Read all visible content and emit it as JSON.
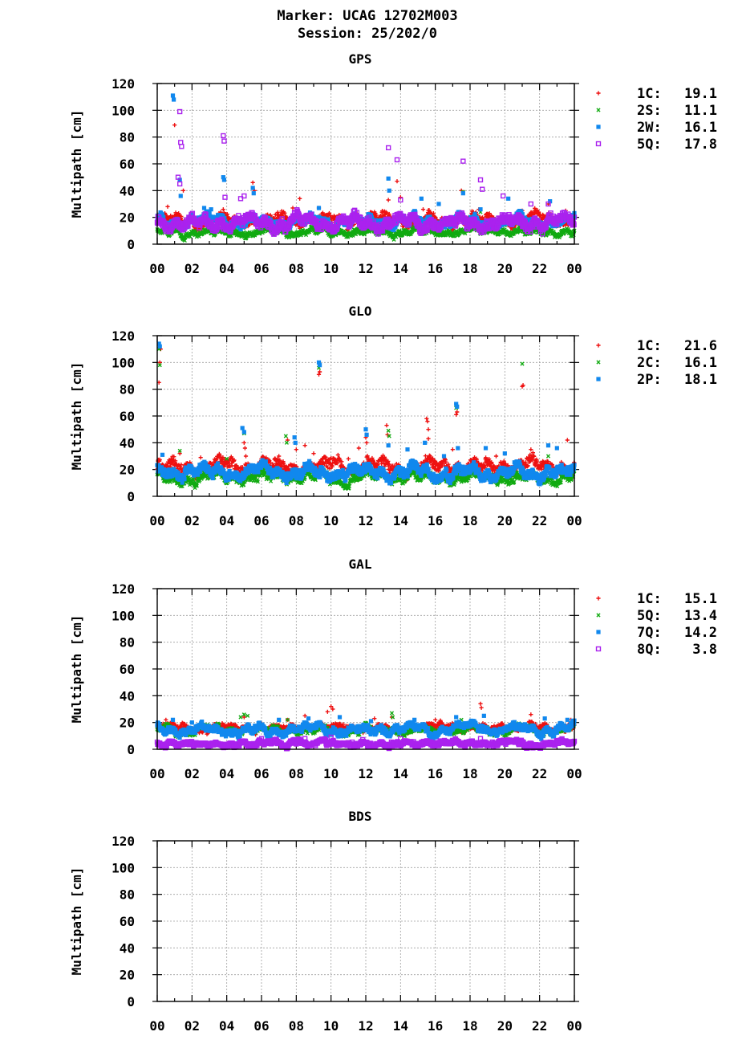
{
  "header": {
    "marker": "Marker: UCAG 12702M003",
    "session": "Session: 25/202/0"
  },
  "chart_data": [
    {
      "type": "scatter",
      "title": "GPS",
      "ylabel": "Multipath [cm]",
      "xlabel": "",
      "ylim": [
        0,
        120
      ],
      "yticks": [
        "0",
        "20",
        "40",
        "60",
        "80",
        "100",
        "120"
      ],
      "xticks": [
        "00",
        "02",
        "04",
        "06",
        "08",
        "10",
        "12",
        "14",
        "16",
        "18",
        "20",
        "22",
        "00"
      ],
      "xlim_hours": [
        0,
        24
      ],
      "grid": true,
      "legend_position": "right",
      "series": [
        {
          "name": "1C",
          "stat": "19.1",
          "color": "#ee1111",
          "marker": "plus",
          "base": 18,
          "amp": 5,
          "spikes": [
            [
              0.6,
              28
            ],
            [
              1.0,
              89
            ],
            [
              1.5,
              40
            ],
            [
              3.8,
              26
            ],
            [
              5.5,
              46
            ],
            [
              5.6,
              40
            ],
            [
              6.8,
              22
            ],
            [
              7.8,
              27
            ],
            [
              8.2,
              34
            ],
            [
              9.3,
              27
            ],
            [
              11.5,
              23
            ],
            [
              12.5,
              24
            ],
            [
              13.3,
              33
            ],
            [
              13.8,
              47
            ],
            [
              14.0,
              35
            ],
            [
              15.3,
              26
            ],
            [
              17.5,
              40
            ],
            [
              18.5,
              26
            ],
            [
              21.0,
              25
            ],
            [
              22.5,
              30
            ],
            [
              23.5,
              25
            ]
          ]
        },
        {
          "name": "2S",
          "stat": "11.1",
          "color": "#11aa11",
          "marker": "cross",
          "base": 9,
          "amp": 3,
          "spikes": [
            [
              1.3,
              16
            ],
            [
              4.0,
              14
            ],
            [
              5.6,
              17
            ],
            [
              13.5,
              15
            ],
            [
              17.6,
              39
            ],
            [
              18.6,
              24
            ],
            [
              20.0,
              14
            ],
            [
              22.6,
              18
            ]
          ]
        },
        {
          "name": "2W",
          "stat": "16.1",
          "color": "#1188ee",
          "marker": "square",
          "base": 17,
          "amp": 5,
          "spikes": [
            [
              0.9,
              111
            ],
            [
              0.95,
              108
            ],
            [
              1.3,
              48
            ],
            [
              1.35,
              36
            ],
            [
              2.7,
              27
            ],
            [
              3.1,
              26
            ],
            [
              3.8,
              50
            ],
            [
              3.85,
              48
            ],
            [
              5.5,
              42
            ],
            [
              5.55,
              38
            ],
            [
              9.3,
              27
            ],
            [
              13.3,
              49
            ],
            [
              13.35,
              40
            ],
            [
              15.2,
              34
            ],
            [
              16.2,
              30
            ],
            [
              17.6,
              38
            ],
            [
              18.6,
              26
            ],
            [
              20.2,
              34
            ],
            [
              22.6,
              32
            ]
          ]
        },
        {
          "name": "5Q",
          "stat": "17.8",
          "color": "#aa22ee",
          "marker": "opensquare",
          "base": 16,
          "amp": 6,
          "spikes": [
            [
              1.3,
              99
            ],
            [
              1.35,
              76
            ],
            [
              1.4,
              73
            ],
            [
              1.2,
              50
            ],
            [
              1.3,
              45
            ],
            [
              3.8,
              81
            ],
            [
              3.85,
              77
            ],
            [
              3.9,
              35
            ],
            [
              4.8,
              34
            ],
            [
              5.0,
              36
            ],
            [
              13.3,
              72
            ],
            [
              13.8,
              63
            ],
            [
              14.0,
              33
            ],
            [
              17.6,
              62
            ],
            [
              18.6,
              48
            ],
            [
              18.7,
              41
            ],
            [
              19.9,
              36
            ],
            [
              21.5,
              30
            ],
            [
              22.5,
              30
            ]
          ]
        }
      ]
    },
    {
      "type": "scatter",
      "title": "GLO",
      "ylabel": "Multipath [cm]",
      "xlabel": "",
      "ylim": [
        0,
        120
      ],
      "yticks": [
        "0",
        "20",
        "40",
        "60",
        "80",
        "100",
        "120"
      ],
      "xticks": [
        "00",
        "02",
        "04",
        "06",
        "08",
        "10",
        "12",
        "14",
        "16",
        "18",
        "20",
        "22",
        "00"
      ],
      "xlim_hours": [
        0,
        24
      ],
      "grid": true,
      "legend_position": "right",
      "series": [
        {
          "name": "1C",
          "stat": "21.6",
          "color": "#ee1111",
          "marker": "plus",
          "base": 22,
          "amp": 7,
          "spikes": [
            [
              0.1,
              85
            ],
            [
              0.15,
              100
            ],
            [
              0.2,
              110
            ],
            [
              0.8,
              28
            ],
            [
              1.3,
              32
            ],
            [
              2.5,
              29
            ],
            [
              3.0,
              25
            ],
            [
              5.0,
              40
            ],
            [
              5.05,
              36
            ],
            [
              5.1,
              30
            ],
            [
              6.0,
              28
            ],
            [
              7.0,
              30
            ],
            [
              7.5,
              42
            ],
            [
              8.0,
              35
            ],
            [
              8.5,
              38
            ],
            [
              9.0,
              32
            ],
            [
              9.3,
              91
            ],
            [
              9.35,
              93
            ],
            [
              11.0,
              28
            ],
            [
              11.6,
              36
            ],
            [
              12.0,
              44
            ],
            [
              12.05,
              40
            ],
            [
              13.2,
              53
            ],
            [
              13.25,
              46
            ],
            [
              15.5,
              58
            ],
            [
              15.55,
              56
            ],
            [
              15.6,
              50
            ],
            [
              15.6,
              43
            ],
            [
              17.0,
              35
            ],
            [
              17.2,
              61
            ],
            [
              17.25,
              63
            ],
            [
              19.5,
              30
            ],
            [
              21.0,
              82
            ],
            [
              21.05,
              83
            ],
            [
              21.5,
              35
            ],
            [
              23.6,
              42
            ],
            [
              23.9,
              14
            ]
          ]
        },
        {
          "name": "2C",
          "stat": "16.1",
          "color": "#11aa11",
          "marker": "cross",
          "base": 14,
          "amp": 5,
          "spikes": [
            [
              0.1,
              110
            ],
            [
              0.15,
              98
            ],
            [
              1.3,
              34
            ],
            [
              4.0,
              28
            ],
            [
              5.0,
              47
            ],
            [
              7.4,
              45
            ],
            [
              7.45,
              40
            ],
            [
              9.3,
              96
            ],
            [
              13.3,
              49
            ],
            [
              13.35,
              45
            ],
            [
              17.2,
              66
            ],
            [
              21.0,
              99
            ],
            [
              22.5,
              30
            ]
          ]
        },
        {
          "name": "2P",
          "stat": "18.1",
          "color": "#1188ee",
          "marker": "square",
          "base": 18,
          "amp": 6,
          "spikes": [
            [
              0.1,
              114
            ],
            [
              0.15,
              112
            ],
            [
              0.3,
              31
            ],
            [
              4.9,
              51
            ],
            [
              5.0,
              48
            ],
            [
              7.9,
              44
            ],
            [
              7.95,
              40
            ],
            [
              9.3,
              100
            ],
            [
              9.35,
              98
            ],
            [
              12.0,
              50
            ],
            [
              12.05,
              46
            ],
            [
              13.3,
              38
            ],
            [
              14.4,
              35
            ],
            [
              15.4,
              40
            ],
            [
              16.5,
              30
            ],
            [
              17.2,
              69
            ],
            [
              17.25,
              67
            ],
            [
              17.3,
              36
            ],
            [
              18.9,
              36
            ],
            [
              20.0,
              32
            ],
            [
              22.5,
              38
            ],
            [
              23.0,
              36
            ]
          ]
        }
      ]
    },
    {
      "type": "scatter",
      "title": "GAL",
      "ylabel": "Multipath [cm]",
      "xlabel": "",
      "ylim": [
        0,
        120
      ],
      "yticks": [
        "0",
        "20",
        "40",
        "60",
        "80",
        "100",
        "120"
      ],
      "xticks": [
        "00",
        "02",
        "04",
        "06",
        "08",
        "10",
        "12",
        "14",
        "16",
        "18",
        "20",
        "22",
        "00"
      ],
      "xlim_hours": [
        0,
        24
      ],
      "grid": true,
      "legend_position": "right",
      "series": [
        {
          "name": "1C",
          "stat": "15.1",
          "color": "#ee1111",
          "marker": "plus",
          "base": 16,
          "amp": 3,
          "spikes": [
            [
              0.5,
              22
            ],
            [
              5.0,
              24
            ],
            [
              7.5,
              22
            ],
            [
              8.5,
              25
            ],
            [
              9.8,
              28
            ],
            [
              10.0,
              32
            ],
            [
              10.1,
              30
            ],
            [
              12.5,
              23
            ],
            [
              13.5,
              24
            ],
            [
              16.0,
              22
            ],
            [
              18.6,
              34
            ],
            [
              18.65,
              31
            ],
            [
              21.5,
              26
            ],
            [
              23.8,
              22
            ]
          ]
        },
        {
          "name": "5Q",
          "stat": "13.4",
          "color": "#11aa11",
          "marker": "cross",
          "base": 14,
          "amp": 3,
          "spikes": [
            [
              4.8,
              24
            ],
            [
              5.0,
              26
            ],
            [
              5.2,
              25
            ],
            [
              7.5,
              22
            ],
            [
              13.5,
              27
            ],
            [
              13.55,
              24
            ],
            [
              17.5,
              22
            ]
          ]
        },
        {
          "name": "7Q",
          "stat": "14.2",
          "color": "#1188ee",
          "marker": "square",
          "base": 15,
          "amp": 4,
          "spikes": [
            [
              0.9,
              22
            ],
            [
              2.0,
              20
            ],
            [
              7.0,
              22
            ],
            [
              8.7,
              23
            ],
            [
              10.5,
              24
            ],
            [
              12.3,
              21
            ],
            [
              14.8,
              22
            ],
            [
              17.2,
              24
            ],
            [
              18.8,
              25
            ],
            [
              20.5,
              20
            ],
            [
              22.3,
              23
            ],
            [
              23.6,
              22
            ]
          ]
        },
        {
          "name": "8Q",
          "stat": "3.8",
          "color": "#aa22ee",
          "marker": "opensquare",
          "base": 4,
          "amp": 2,
          "spikes": [
            [
              6.0,
              8
            ],
            [
              8.5,
              8
            ],
            [
              10.0,
              9
            ],
            [
              14.0,
              8
            ],
            [
              18.6,
              8
            ]
          ]
        }
      ]
    },
    {
      "type": "scatter",
      "title": "BDS",
      "ylabel": "Multipath [cm]",
      "xlabel": "",
      "ylim": [
        0,
        120
      ],
      "yticks": [
        "0",
        "20",
        "40",
        "60",
        "80",
        "100",
        "120"
      ],
      "xticks": [
        "00",
        "02",
        "04",
        "06",
        "08",
        "10",
        "12",
        "14",
        "16",
        "18",
        "20",
        "22",
        "00"
      ],
      "xlim_hours": [
        0,
        24
      ],
      "grid": true,
      "legend_position": "right",
      "series": []
    }
  ]
}
